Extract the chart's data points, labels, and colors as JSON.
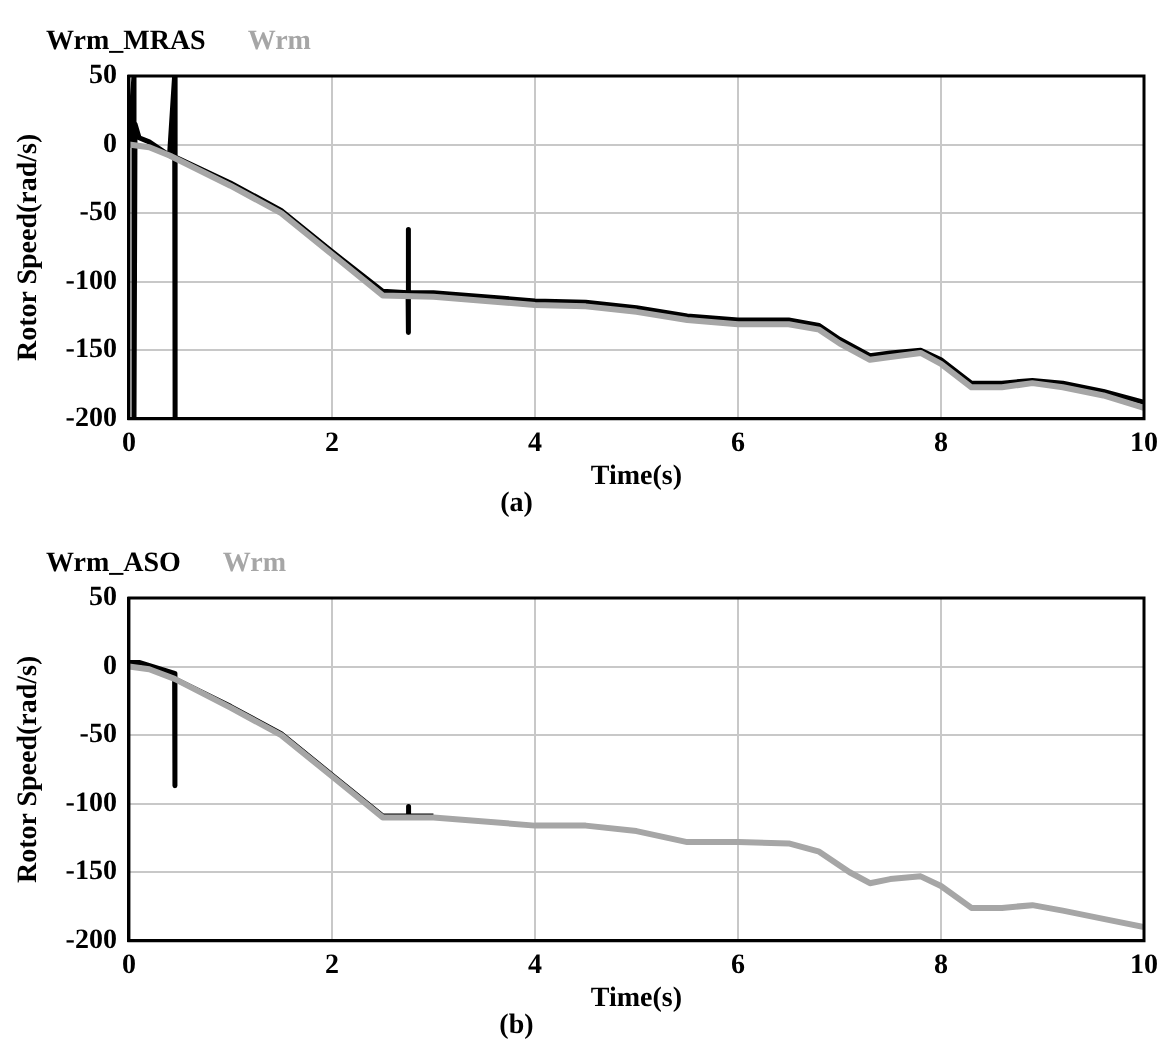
{
  "chart_data": [
    {
      "type": "line",
      "xlabel": "Time(s)",
      "ylabel": "Rotor Speed(rad/s)",
      "annotations": [
        "(a)"
      ],
      "legend": "top left",
      "grid": true,
      "marker": "none",
      "line_style": "solid",
      "xlim": [
        0,
        10
      ],
      "xticks": [
        0,
        2,
        4,
        6,
        8,
        10
      ],
      "ylim": [
        -200,
        50
      ],
      "yticks": [
        -200,
        -150,
        -100,
        -50,
        0,
        50
      ],
      "series": [
        {
          "name": "Wrm_MRAS",
          "color": "#000000",
          "x": [
            0,
            0.03,
            0.05,
            0.05,
            0.06,
            0.1,
            0.2,
            0.4,
            0.45,
            0.45,
            0.46,
            1,
            1.5,
            2,
            2.5,
            2.75,
            2.75,
            2.75,
            2.76,
            3,
            4,
            4.5,
            5,
            5.5,
            6,
            6.5,
            6.8,
            7,
            7.3,
            7.5,
            7.8,
            8,
            8.3,
            8.6,
            8.9,
            9.2,
            9.6,
            10
          ],
          "values": [
            0,
            30,
            50,
            -200,
            15,
            5,
            2,
            -8,
            50,
            -200,
            -9,
            -28,
            -48,
            -78,
            -107,
            -108,
            -62,
            -137,
            -108,
            -108,
            -114,
            -115,
            -119,
            -125,
            -128,
            -128,
            -132,
            -142,
            -154,
            -152,
            -150,
            -157,
            -174,
            -174,
            -172,
            -174,
            -180,
            -188
          ]
        },
        {
          "name": "Wrm",
          "color": "#a6a6a6",
          "x": [
            0,
            0.2,
            0.4,
            1,
            1.5,
            2,
            2.5,
            3,
            4,
            4.5,
            5,
            5.5,
            6,
            6.5,
            6.8,
            7,
            7.3,
            7.5,
            7.8,
            8,
            8.3,
            8.6,
            8.9,
            9.2,
            9.6,
            10
          ],
          "values": [
            0,
            -2,
            -8,
            -30,
            -50,
            -80,
            -110,
            -111,
            -117,
            -118,
            -122,
            -128,
            -131,
            -131,
            -135,
            -145,
            -157,
            -155,
            -152,
            -160,
            -177,
            -177,
            -174,
            -177,
            -183,
            -192
          ]
        }
      ]
    },
    {
      "type": "line",
      "xlabel": "Time(s)",
      "ylabel": "Rotor Speed(rad/s)",
      "annotations": [
        "(b)"
      ],
      "legend": "top left",
      "grid": true,
      "marker": "none",
      "line_style": "solid",
      "xlim": [
        0,
        10
      ],
      "xticks": [
        0,
        2,
        4,
        6,
        8,
        10
      ],
      "ylim": [
        -200,
        50
      ],
      "yticks": [
        -200,
        -150,
        -100,
        -50,
        0,
        50
      ],
      "series": [
        {
          "name": "Wrm_ASO",
          "color": "#000000",
          "x": [
            0,
            0.1,
            0.45,
            0.45,
            0.45,
            0.46,
            1,
            1.5,
            2,
            2.5,
            2.75,
            2.75,
            2.76,
            3
          ],
          "values": [
            3,
            3,
            -5,
            -5,
            -87,
            -9,
            -29,
            -49,
            -79,
            -109,
            -109,
            -102,
            -109,
            -109
          ]
        },
        {
          "name": "Wrm",
          "color": "#a6a6a6",
          "x": [
            0,
            0.2,
            0.45,
            1,
            1.5,
            2,
            2.5,
            3,
            4,
            4.5,
            5,
            5.5,
            6,
            6.5,
            6.8,
            7.1,
            7.3,
            7.5,
            7.8,
            8,
            8.3,
            8.6,
            8.9,
            9.2,
            9.6,
            10
          ],
          "values": [
            0,
            -2,
            -9,
            -30,
            -50,
            -80,
            -110,
            -110,
            -116,
            -116,
            -120,
            -128,
            -128,
            -129,
            -135,
            -150,
            -158,
            -155,
            -153,
            -160,
            -176,
            -176,
            -174,
            -178,
            -184,
            -190
          ]
        }
      ]
    }
  ]
}
